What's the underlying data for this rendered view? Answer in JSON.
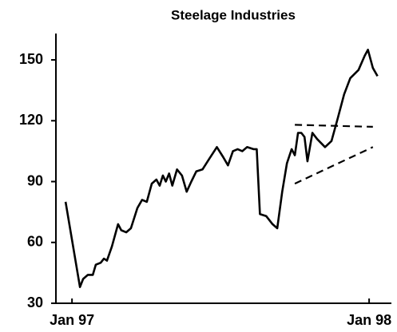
{
  "chart_data": {
    "type": "line",
    "title": "Steelage Industries",
    "xlim": [
      -0.65,
      12.9
    ],
    "xticks": [
      {
        "value": 0,
        "label": "Jan 97"
      },
      {
        "value": 12,
        "label": "Jan 98"
      }
    ],
    "ylim": [
      30,
      163
    ],
    "yticks": [
      30,
      60,
      90,
      120,
      150
    ],
    "grid": false,
    "series": [
      {
        "color": "#000000",
        "dash": false,
        "x": [
          -0.26,
          0.32,
          0.45,
          0.64,
          0.84,
          0.96,
          1.16,
          1.29,
          1.41,
          1.61,
          1.86,
          1.99,
          2.19,
          2.38,
          2.64,
          2.83,
          3.02,
          3.22,
          3.41,
          3.54,
          3.67,
          3.79,
          3.92,
          4.05,
          4.24,
          4.44,
          4.63,
          4.82,
          5.02,
          5.27,
          5.53,
          5.85,
          6.11,
          6.3,
          6.5,
          6.69,
          6.88,
          7.07,
          7.33,
          7.46,
          7.59,
          7.84,
          8.1,
          8.29,
          8.49,
          8.68,
          8.87,
          9.0,
          9.13,
          9.26,
          9.39,
          9.51,
          9.71,
          9.9,
          10.22,
          10.48,
          10.73,
          10.99,
          11.24,
          11.57,
          11.82,
          11.95,
          12.15,
          12.34
        ],
        "values": [
          80,
          38,
          42,
          44,
          44,
          49,
          50,
          52,
          51,
          58,
          69,
          66,
          65,
          67,
          77,
          81,
          80,
          89,
          91,
          88,
          93,
          90,
          94,
          88,
          96,
          93,
          85,
          90,
          95,
          96,
          101,
          107,
          102,
          98,
          105,
          106,
          105,
          107,
          106,
          106,
          74,
          73,
          69,
          67,
          85,
          99,
          106,
          103,
          114,
          114,
          112,
          100,
          114,
          111,
          107,
          110,
          121,
          133,
          141,
          145,
          152,
          155,
          146,
          142
        ]
      },
      {
        "color": "#000000",
        "dash": true,
        "x": [
          9.0,
          12.15
        ],
        "values": [
          118,
          117
        ]
      },
      {
        "color": "#000000",
        "dash": true,
        "x": [
          9.0,
          12.15
        ],
        "values": [
          89,
          107
        ]
      }
    ]
  }
}
